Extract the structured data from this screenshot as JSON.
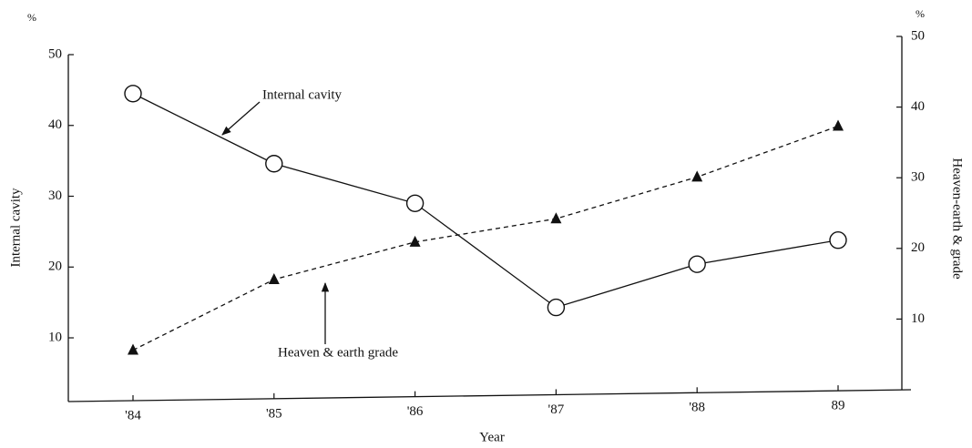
{
  "chart_data": {
    "type": "line",
    "xlabel": "Year",
    "ylabel": "Internal cavity",
    "y2label": "Heaven-earth & grade",
    "yunit": "%",
    "y2unit": "%",
    "annotations": [
      "Internal cavity",
      "Heaven & earth grade"
    ],
    "categories": [
      "'84",
      "'85",
      "'86",
      "'87",
      "'88",
      "89"
    ],
    "ylim": [
      1,
      50
    ],
    "yticks": [
      10,
      20,
      30,
      40,
      50
    ],
    "y2lim": [
      0,
      50
    ],
    "y2ticks": [
      10,
      20,
      30,
      40,
      50
    ],
    "series": [
      {
        "name": "Internal cavity",
        "color": "#111111",
        "marker": "circle",
        "dash": false,
        "values": [
          44.5,
          34.6,
          29,
          14.3,
          20.4,
          23.8
        ]
      },
      {
        "name": "Heaven & earth grade",
        "color": "#111111",
        "marker": "triangle",
        "dash": true,
        "axis": "y2",
        "values": [
          5.6,
          15.6,
          20.9,
          24.2,
          30.1,
          37.3
        ]
      }
    ]
  }
}
